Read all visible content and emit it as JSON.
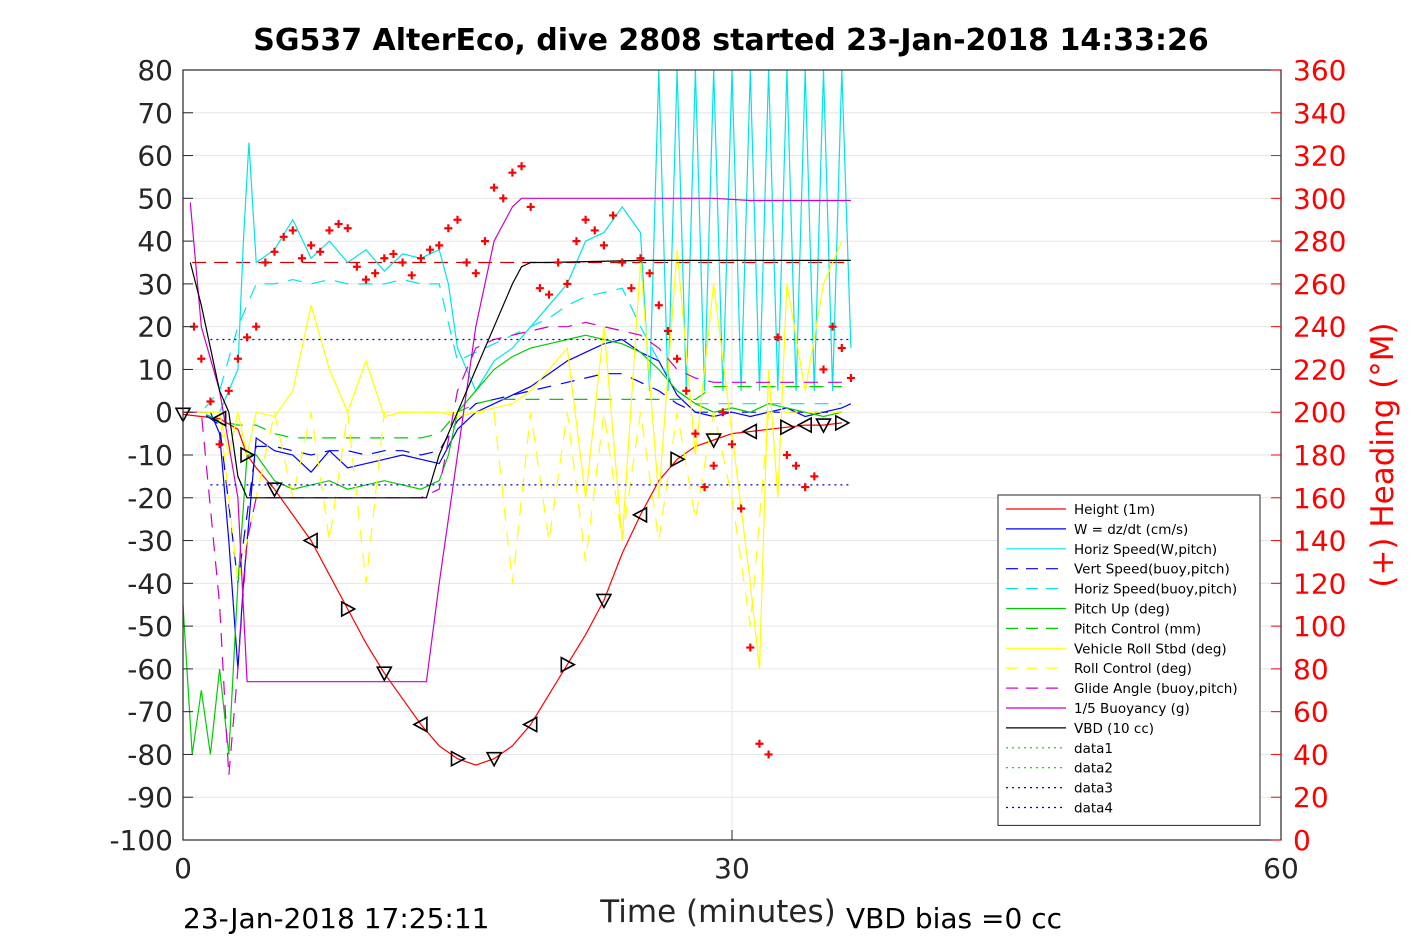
{
  "chart_data": {
    "type": "line",
    "title": "SG537 AlterEco, dive 2808 started 23-Jan-2018 14:33:26",
    "xlabel": "Time (minutes)",
    "ylabel_right": "(+) Heading (°M)",
    "xlim": [
      0,
      60
    ],
    "ylim_left": [
      -100,
      80
    ],
    "ylim_right": [
      0,
      360
    ],
    "xticks": [
      "0",
      "30",
      "60"
    ],
    "yticks_left": [
      "80",
      "70",
      "60",
      "50",
      "40",
      "30",
      "20",
      "10",
      "0",
      "-10",
      "-20",
      "-30",
      "-40",
      "-50",
      "-60",
      "-70",
      "-80",
      "-90",
      "-100"
    ],
    "yticks_right": [
      "360",
      "340",
      "320",
      "300",
      "280",
      "260",
      "240",
      "220",
      "200",
      "180",
      "160",
      "140",
      "120",
      "100",
      "80",
      "60",
      "40",
      "20",
      "0"
    ],
    "footer_left": "23-Jan-2018 17:25:11",
    "footer_right": "VBD bias =0 cc",
    "legend_position": "bottom-right",
    "grid": true,
    "series": [
      {
        "name": "Height (1m)",
        "color": "#ff0000",
        "style": "solid",
        "x": [
          0,
          1,
          2,
          3,
          3.5,
          4,
          5,
          6,
          7,
          8,
          9,
          10,
          11,
          12,
          13,
          14,
          15,
          16,
          17,
          18,
          19,
          20,
          21,
          22,
          23,
          24,
          25,
          26,
          27,
          28,
          29,
          30,
          31,
          32,
          33,
          34,
          35,
          36
        ],
        "y": [
          -0.5,
          -1,
          -1.5,
          -4,
          -10,
          -13,
          -18,
          -24,
          -30,
          -38,
          -46,
          -54,
          -61,
          -67,
          -73,
          -78,
          -81,
          -82.5,
          -81,
          -78,
          -73,
          -66,
          -59,
          -52,
          -44,
          -33,
          -24,
          -16,
          -11,
          -8,
          -6.5,
          -5,
          -4.5,
          -4,
          -3.5,
          -3,
          -3,
          -2.5
        ]
      },
      {
        "name": "W = dz/dt (cm/s)",
        "color": "#0000ff",
        "style": "solid",
        "x": [
          0,
          1,
          1.5,
          2,
          2.5,
          3,
          3.3,
          4,
          5,
          6,
          7,
          8,
          9,
          10,
          11,
          12,
          13,
          14,
          14.5,
          15,
          16,
          17,
          18,
          19,
          20,
          21,
          22,
          23,
          24,
          25,
          26,
          27,
          28,
          29,
          30,
          31,
          32,
          33,
          34,
          35,
          36,
          36.5
        ],
        "y": [
          0,
          0,
          0,
          -5,
          -30,
          -60,
          -40,
          -6,
          -9,
          -10,
          -14,
          -9,
          -13,
          -12,
          -11,
          -10,
          -11,
          -12,
          -8,
          -4,
          0,
          2,
          4,
          6,
          9,
          12,
          14,
          16,
          17,
          14,
          12,
          4,
          0,
          -1,
          0,
          -1,
          0,
          1,
          -1,
          0,
          1,
          2
        ]
      },
      {
        "name": "Horiz Speed(W,pitch)",
        "color": "#00e5e5",
        "style": "solid",
        "x": [
          0,
          1,
          2,
          3,
          3.3,
          3.6,
          4,
          5,
          6,
          7,
          8,
          9,
          10,
          11,
          12,
          13,
          14,
          14.5,
          15,
          16,
          17,
          18,
          19,
          20,
          21,
          22,
          23,
          24,
          25,
          25.5,
          26,
          26.5,
          27,
          27.5,
          28,
          28.5,
          29,
          29.5,
          30,
          30.5,
          31,
          31.5,
          32,
          32.5,
          33,
          33.5,
          34,
          34.5,
          35,
          35.5,
          36,
          36.5
        ],
        "y": [
          0,
          0,
          0,
          10,
          40,
          63,
          35,
          38,
          45,
          36,
          40,
          35,
          38,
          33,
          37,
          36,
          38,
          30,
          15,
          5,
          12,
          15,
          20,
          25,
          30,
          40,
          42,
          48,
          42,
          5,
          80,
          5,
          80,
          5,
          80,
          5,
          80,
          5,
          80,
          5,
          80,
          5,
          80,
          5,
          80,
          5,
          80,
          5,
          80,
          5,
          80,
          15
        ]
      },
      {
        "name": "Vert Speed(buoy,pitch)",
        "color": "#0000ff",
        "style": "dash",
        "x": [
          0,
          1,
          2,
          3,
          4,
          5,
          6,
          7,
          8,
          9,
          10,
          11,
          12,
          13,
          14,
          15,
          16,
          17,
          18,
          19,
          20,
          21,
          22,
          23,
          24,
          25,
          26,
          27,
          28,
          29,
          30,
          31,
          32,
          33,
          34,
          35,
          36
        ],
        "y": [
          0,
          0,
          -3,
          -40,
          -8,
          -8,
          -9,
          -10,
          -9,
          -9,
          -10,
          -9,
          -9,
          -10,
          -9,
          -2,
          2,
          3,
          4,
          5,
          6,
          7,
          8,
          9,
          9,
          7,
          5,
          2,
          0,
          0,
          0,
          0,
          0,
          0,
          0,
          0,
          0
        ]
      },
      {
        "name": "Horiz Speed(buoy,pitch)",
        "color": "#00e5e5",
        "style": "dash",
        "x": [
          0,
          1,
          2,
          3,
          4,
          5,
          6,
          7,
          8,
          9,
          10,
          11,
          12,
          13,
          14,
          15,
          16,
          17,
          18,
          19,
          20,
          21,
          22,
          23,
          24,
          25,
          26,
          27,
          28,
          29,
          30,
          31,
          32,
          33,
          34,
          35,
          36
        ],
        "y": [
          0,
          0,
          5,
          20,
          30,
          30,
          31,
          30,
          31,
          30,
          30,
          30,
          31,
          30,
          30,
          12,
          14,
          16,
          18,
          20,
          22,
          25,
          27,
          28,
          29,
          20,
          12,
          5,
          2,
          2,
          2,
          2,
          2,
          2,
          2,
          2,
          2
        ]
      },
      {
        "name": "Pitch Up (deg)",
        "color": "#00cc00",
        "style": "solid",
        "x": [
          0,
          0.5,
          1,
          1.5,
          2,
          2.5,
          3,
          3.5,
          4,
          5,
          6,
          7,
          8,
          9,
          10,
          11,
          12,
          13,
          14,
          14.5,
          15,
          16,
          17,
          18,
          19,
          20,
          21,
          22,
          23,
          24,
          25,
          26,
          27,
          28,
          29,
          30,
          31,
          32,
          33,
          34,
          35,
          36
        ],
        "y": [
          -45,
          -80,
          -65,
          -80,
          -60,
          -80,
          -40,
          -10,
          -10,
          -16,
          -18,
          -17,
          -16,
          -18,
          -17,
          -16,
          -17,
          -18,
          -16,
          -10,
          0,
          5,
          10,
          13,
          15,
          16,
          17,
          18,
          17,
          16,
          14,
          10,
          5,
          2,
          0,
          1,
          0,
          2,
          1,
          0,
          -1,
          0
        ]
      },
      {
        "name": "Pitch Control (mm)",
        "color": "#00cc00",
        "style": "dash",
        "x": [
          0,
          1,
          2,
          3,
          4,
          5,
          6,
          7,
          8,
          9,
          10,
          11,
          12,
          13,
          14,
          15,
          16,
          17,
          18,
          19,
          20,
          21,
          22,
          23,
          24,
          25,
          26,
          27,
          28,
          29,
          30,
          31,
          32,
          33,
          34,
          35,
          36
        ],
        "y": [
          0,
          0,
          -2,
          -3,
          -3,
          -5,
          -6,
          -6,
          -6,
          -6,
          -6,
          -6,
          -6,
          -6,
          -5,
          0,
          2,
          3,
          3,
          3,
          3,
          3,
          3,
          3,
          3,
          3,
          3,
          3,
          3,
          6,
          6,
          6,
          6,
          6,
          6,
          6,
          6
        ]
      },
      {
        "name": "Vehicle Roll Stbd (deg)",
        "color": "#ffff00",
        "style": "solid",
        "x": [
          0,
          1,
          2,
          2.5,
          3,
          3.5,
          4,
          5,
          6,
          7,
          8,
          9,
          10,
          11,
          12,
          13,
          14,
          15,
          16,
          17,
          18,
          19,
          20,
          21,
          22,
          23,
          24,
          25,
          26,
          27,
          28,
          29,
          30,
          31,
          31.5,
          32,
          32.5,
          33,
          34,
          35,
          36
        ],
        "y": [
          0,
          0,
          0,
          -10,
          0,
          -10,
          0,
          -1,
          5,
          25,
          10,
          0,
          12,
          -1,
          0,
          0,
          0,
          -1,
          0,
          1,
          2,
          5,
          10,
          15,
          -20,
          20,
          -30,
          35,
          -20,
          38,
          -10,
          30,
          -5,
          -40,
          -60,
          10,
          -20,
          30,
          5,
          30,
          40
        ]
      },
      {
        "name": "Roll Control (deg)",
        "color": "#ffff00",
        "style": "dash",
        "x": [
          0,
          1,
          2,
          3,
          4,
          5,
          6,
          7,
          8,
          9,
          10,
          11,
          12,
          13,
          14,
          15,
          16,
          17,
          18,
          19,
          20,
          21,
          22,
          23,
          24,
          25,
          26,
          27,
          28,
          29,
          30,
          31,
          32,
          33,
          34,
          35,
          36
        ],
        "y": [
          0,
          0,
          0,
          -40,
          -20,
          0,
          -20,
          0,
          -30,
          0,
          -40,
          0,
          0,
          0,
          0,
          0,
          0,
          0,
          -40,
          0,
          -30,
          0,
          -35,
          0,
          -30,
          0,
          -30,
          0,
          -25,
          0,
          -20,
          -50,
          0,
          0,
          0,
          0,
          0
        ]
      },
      {
        "name": "Glide Angle (buoy,pitch)",
        "color": "#cc00cc",
        "style": "dash",
        "x": [
          0,
          1,
          2,
          2.5,
          3,
          3.5,
          4,
          5,
          6,
          7,
          8,
          9,
          10,
          11,
          12,
          13,
          14,
          15,
          16,
          17,
          18,
          19,
          20,
          21,
          22,
          23,
          24,
          25,
          26,
          27,
          28,
          29,
          30,
          31,
          32,
          33,
          34,
          35,
          36
        ],
        "y": [
          0,
          0,
          -45,
          -85,
          -60,
          -30,
          -20,
          -20,
          -20,
          -20,
          -20,
          -20,
          -20,
          -20,
          -20,
          -20,
          -18,
          5,
          15,
          17,
          18,
          19,
          20,
          20,
          21,
          20,
          19,
          18,
          15,
          10,
          8,
          7,
          7,
          7,
          7,
          7,
          7,
          7,
          7
        ]
      },
      {
        "name": "1/5 Buoyancy (g)",
        "color": "#cc00cc",
        "style": "solid",
        "x": [
          0.4,
          1,
          2,
          3,
          3.5,
          5,
          7,
          9,
          11,
          13,
          13.3,
          14,
          15,
          16,
          17,
          18,
          18.5,
          19,
          21,
          23,
          25,
          27,
          29,
          31,
          33,
          35,
          36.5
        ],
        "y": [
          49,
          20,
          5,
          -20,
          -63,
          -63,
          -63,
          -63,
          -63,
          -63,
          -63,
          -40,
          -10,
          20,
          40,
          48,
          50,
          50,
          50,
          50,
          50,
          50,
          50,
          49.5,
          49.5,
          49.5,
          49.5
        ]
      },
      {
        "name": "VBD (10 cc)",
        "color": "#000000",
        "style": "solid",
        "x": [
          0.4,
          1,
          2,
          2.5,
          3,
          3.5,
          5,
          7,
          9,
          11,
          13,
          13.3,
          14,
          15,
          16,
          17,
          18,
          18.5,
          19,
          20,
          25,
          30,
          36.5
        ],
        "y": [
          35,
          25,
          5,
          0,
          -15,
          -20,
          -20,
          -20,
          -20,
          -20,
          -20,
          -20,
          -10,
          0,
          10,
          20,
          30,
          34,
          35,
          35,
          35.5,
          35.5,
          35.5
        ]
      },
      {
        "name": "data1",
        "color": "#00cc00",
        "style": "dot",
        "x": [],
        "y": []
      },
      {
        "name": "data2",
        "color": "#00cc00",
        "style": "dot",
        "x": [],
        "y": []
      },
      {
        "name": "data3",
        "color": "#0000cc",
        "style": "dot",
        "x": [
          1.5,
          36.5
        ],
        "y": [
          17,
          17
        ]
      },
      {
        "name": "data4",
        "color": "#0000cc",
        "style": "dot",
        "x": [
          1.5,
          36.5
        ],
        "y": [
          -17,
          -17
        ]
      }
    ],
    "heading_target": {
      "color": "#cc0000",
      "style": "dash",
      "x": [
        0.5,
        36.5
      ],
      "y_deg": 270
    },
    "heading_markers": {
      "color": "#ff0000",
      "x": [
        0.6,
        1,
        1.5,
        2,
        2.5,
        3,
        3.5,
        4,
        4.5,
        5,
        5.5,
        6,
        6.5,
        7,
        7.5,
        8,
        8.5,
        9,
        9.5,
        10,
        10.5,
        11,
        11.5,
        12,
        12.5,
        13,
        13.5,
        14,
        14.5,
        15,
        15.5,
        16,
        16.5,
        17,
        17.5,
        18,
        18.5,
        19,
        19.5,
        20,
        20.5,
        21,
        21.5,
        22,
        22.5,
        23,
        23.5,
        24,
        24.5,
        25,
        25.5,
        26,
        26.5,
        27,
        27.5,
        28,
        28.5,
        29,
        29.5,
        30,
        30.5,
        31,
        31.5,
        32,
        32.5,
        33,
        33.5,
        34,
        34.5,
        35,
        35.5,
        36,
        36.5
      ],
      "y": [
        240,
        225,
        205,
        185,
        210,
        225,
        235,
        240,
        270,
        275,
        282,
        285,
        272,
        278,
        275,
        285,
        288,
        286,
        268,
        262,
        265,
        272,
        274,
        270,
        264,
        272,
        276,
        278,
        286,
        290,
        270,
        265,
        280,
        305,
        300,
        312,
        315,
        296,
        258,
        255,
        270,
        260,
        280,
        290,
        285,
        278,
        292,
        270,
        258,
        272,
        265,
        250,
        238,
        225,
        210,
        190,
        165,
        175,
        200,
        185,
        155,
        90,
        45,
        40,
        235,
        180,
        175,
        165,
        170,
        220,
        240,
        230,
        216
      ]
    }
  }
}
